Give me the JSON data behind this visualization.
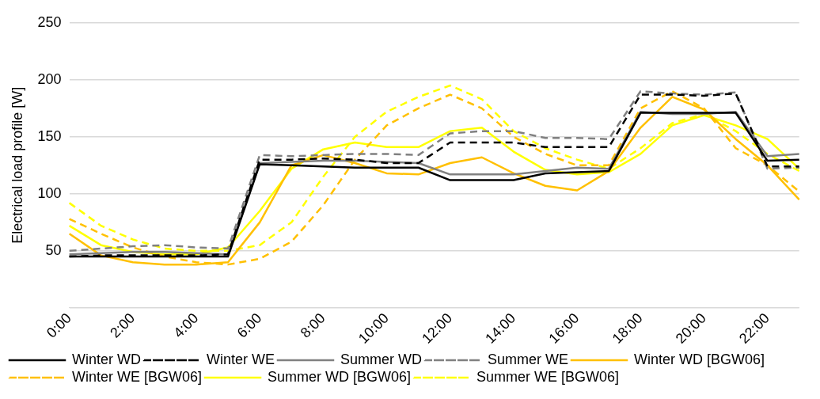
{
  "chart_data": {
    "type": "line",
    "ylabel": "Electrical load profile [W]",
    "categories": [
      "0:00",
      null,
      "2:00",
      null,
      "4:00",
      null,
      "6:00",
      null,
      "8:00",
      null,
      "10:00",
      null,
      "12:00",
      null,
      "14:00",
      null,
      "16:00",
      null,
      "18:00",
      null,
      "20:00",
      null,
      "22:00",
      null
    ],
    "ylim": [
      0,
      250
    ],
    "yticks": [
      {
        "value": 0,
        "label": null
      },
      50,
      100,
      150,
      200,
      250
    ],
    "grid": "y",
    "legend": "bottom",
    "marker": "none",
    "series": [
      {
        "name": "Winter WD",
        "color": "#000000",
        "line_style": "solid",
        "values": [
          45,
          45,
          45,
          45,
          45,
          45,
          126,
          125,
          124,
          123,
          123,
          123,
          112,
          112,
          112,
          118,
          119,
          120,
          171,
          171,
          171,
          171,
          129,
          130
        ]
      },
      {
        "name": "Winter WE",
        "color": "#000000",
        "line_style": "dashed",
        "values": [
          45,
          46,
          46,
          46,
          46,
          47,
          130,
          130,
          131,
          130,
          127,
          127,
          145,
          145,
          145,
          141,
          141,
          141,
          187,
          187,
          186,
          188,
          124,
          124
        ]
      },
      {
        "name": "Summer WD",
        "color": "#808080",
        "line_style": "solid",
        "values": [
          47,
          48,
          49,
          49,
          48,
          47,
          127,
          128,
          129,
          129,
          128,
          127,
          117,
          117,
          117,
          120,
          123,
          122,
          172,
          170,
          170,
          172,
          133,
          135
        ]
      },
      {
        "name": "Summer WE",
        "color": "#808080",
        "line_style": "dashed",
        "values": [
          50,
          52,
          54,
          55,
          53,
          52,
          134,
          133,
          134,
          135,
          135,
          134,
          153,
          155,
          155,
          149,
          149,
          148,
          190,
          188,
          187,
          189,
          122,
          123
        ]
      },
      {
        "name": "Winter WD [BGW06]",
        "color": "#ffc000",
        "line_style": "solid",
        "values": [
          65,
          46,
          40,
          38,
          38,
          40,
          75,
          125,
          134,
          127,
          118,
          117,
          127,
          132,
          118,
          107,
          103,
          120,
          158,
          185,
          174,
          148,
          125,
          95
        ]
      },
      {
        "name": "Winter WE [BGW06]",
        "color": "#ffc000",
        "line_style": "dashed",
        "values": [
          78,
          65,
          53,
          45,
          40,
          38,
          43,
          58,
          90,
          130,
          160,
          175,
          187,
          175,
          150,
          135,
          125,
          125,
          175,
          190,
          175,
          140,
          125,
          102
        ]
      },
      {
        "name": "Summer WD [BGW06]",
        "color": "#ffff00",
        "line_style": "solid",
        "values": [
          72,
          55,
          49,
          47,
          47,
          53,
          85,
          122,
          139,
          145,
          141,
          141,
          155,
          158,
          137,
          121,
          117,
          119,
          135,
          160,
          169,
          160,
          148,
          122
        ]
      },
      {
        "name": "Summer WE [BGW06]",
        "color": "#ffff00",
        "line_style": "dashed",
        "values": [
          92,
          72,
          60,
          52,
          50,
          50,
          55,
          75,
          115,
          150,
          172,
          185,
          195,
          183,
          155,
          140,
          130,
          122,
          140,
          162,
          170,
          155,
          135,
          120
        ]
      }
    ]
  }
}
